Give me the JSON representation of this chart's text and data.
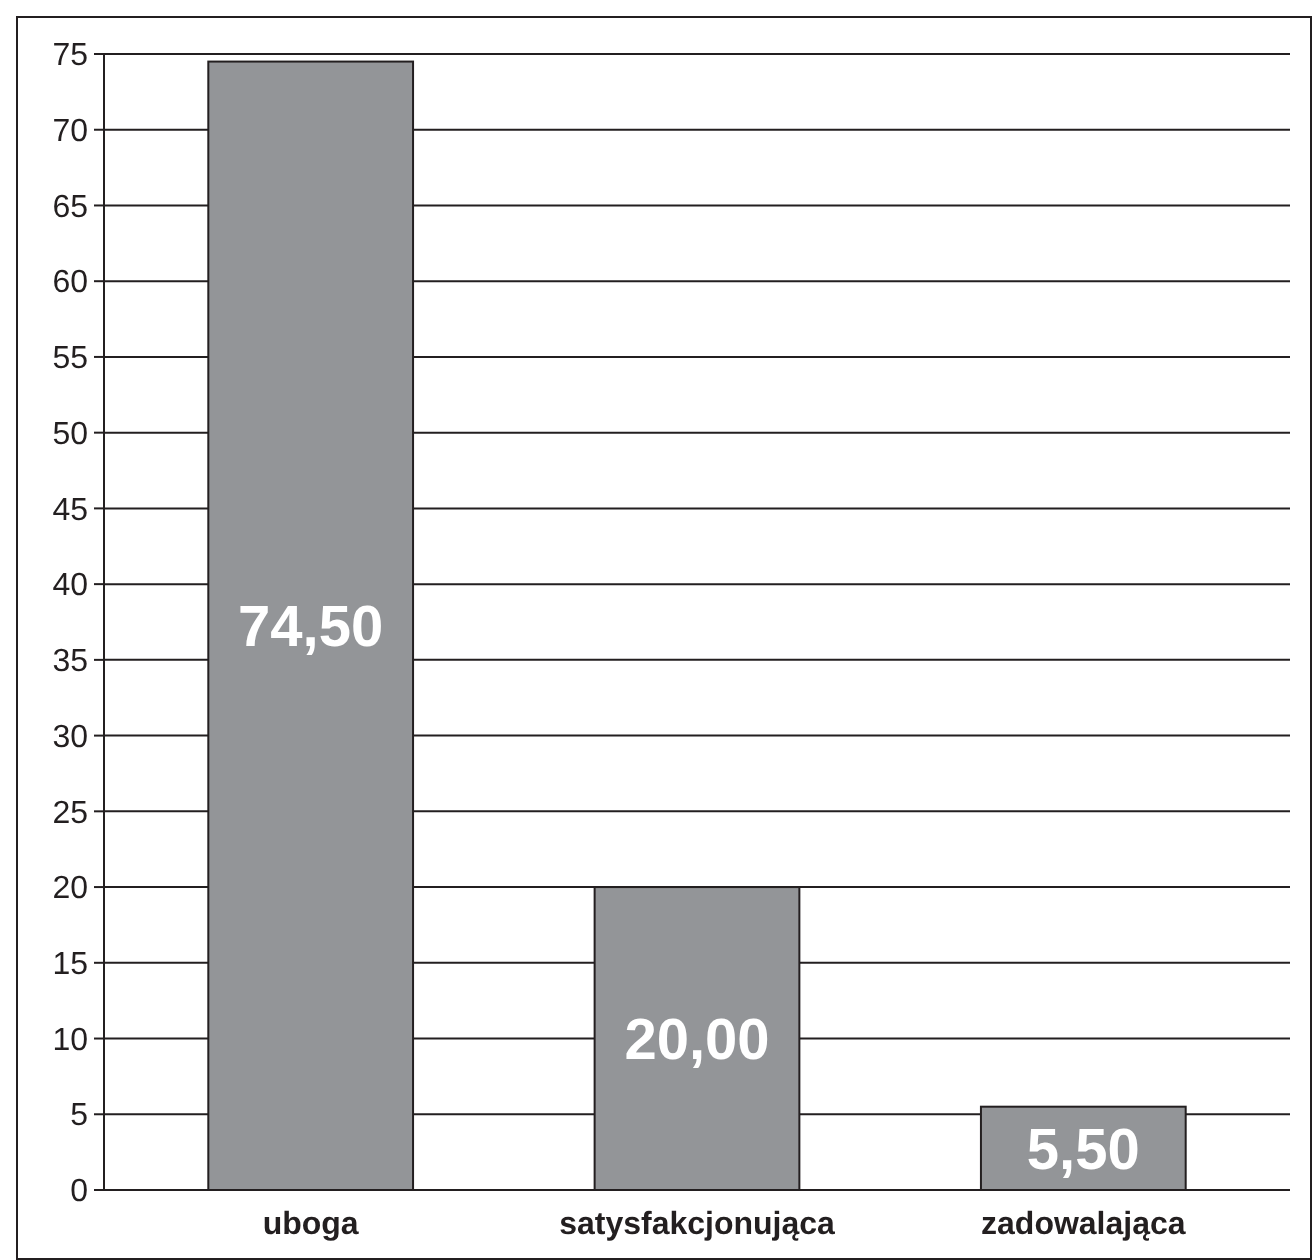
{
  "chart_data": {
    "type": "bar",
    "categories": [
      "uboga",
      "satysfakcjonująca",
      "zadowalająca"
    ],
    "values": [
      74.5,
      20,
      5.5
    ],
    "color": "#939598",
    "value_labels": [
      "74,50",
      "20,00",
      "5,50"
    ],
    "ylim": [
      0,
      75
    ],
    "yticks": [
      0,
      5,
      10,
      15,
      20,
      25,
      30,
      35,
      40,
      45,
      50,
      55,
      60,
      65,
      70,
      75
    ],
    "grid": "y"
  }
}
